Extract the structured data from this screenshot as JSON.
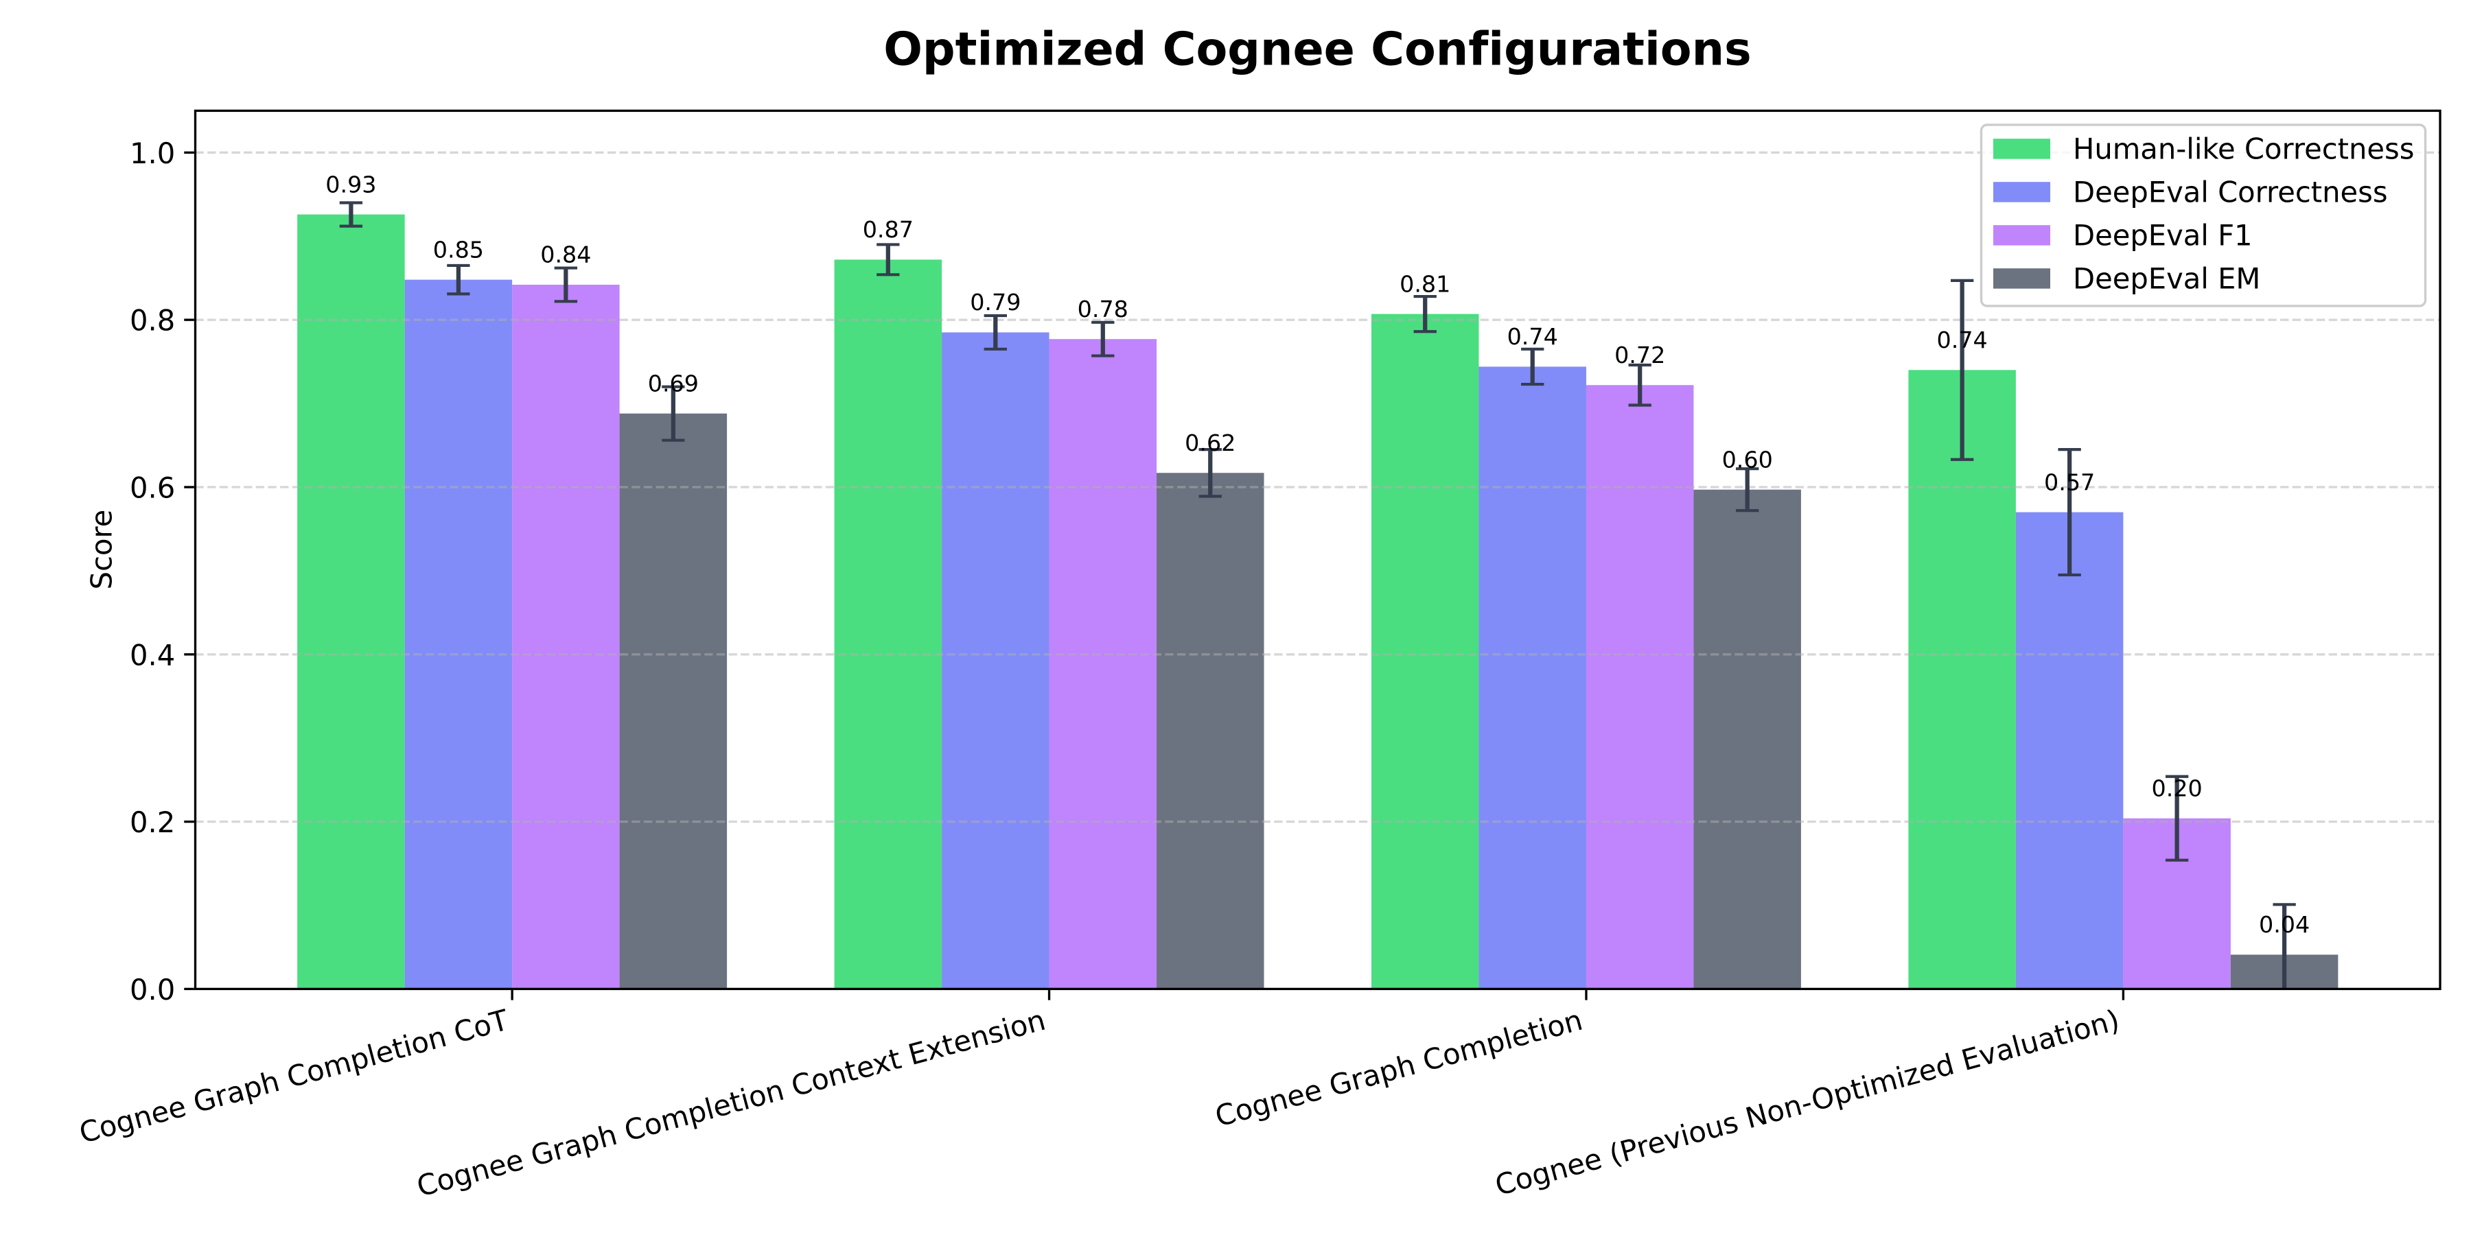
{
  "chart_data": {
    "type": "bar",
    "title": "Optimized Cognee Configurations",
    "xlabel": "",
    "ylabel": "Score",
    "ylim": [
      0,
      1.05
    ],
    "yticks": [
      "0.0",
      "0.2",
      "0.4",
      "0.6",
      "0.8",
      "1.0"
    ],
    "ytick_values": [
      0.0,
      0.2,
      0.4,
      0.6,
      0.8,
      1.0
    ],
    "grid": true,
    "grid_style": "dashed",
    "legend_position": "upper right",
    "background_color": "#ffffff",
    "error_bar_color": "#353d4e",
    "categories": [
      "Cognee Graph Completion CoT",
      "Cognee Graph Completion Context Extension",
      "Cognee Graph Completion",
      "Cognee (Previous Non-Optimized Evaluation)"
    ],
    "series": [
      {
        "name": "Human-like Correctness",
        "color": "#4ade80",
        "values": [
          0.926,
          0.872,
          0.807,
          0.74
        ],
        "errors": [
          0.014,
          0.018,
          0.021,
          0.107
        ],
        "labels": [
          "0.93",
          "0.87",
          "0.81",
          "0.74"
        ]
      },
      {
        "name": "DeepEval Correctness",
        "color": "#818cf8",
        "values": [
          0.848,
          0.785,
          0.744,
          0.57
        ],
        "errors": [
          0.017,
          0.02,
          0.021,
          0.075
        ],
        "labels": [
          "0.85",
          "0.79",
          "0.74",
          "0.57"
        ]
      },
      {
        "name": "DeepEval F1",
        "color": "#c084fc",
        "values": [
          0.842,
          0.777,
          0.722,
          0.204
        ],
        "errors": [
          0.02,
          0.02,
          0.024,
          0.05
        ],
        "labels": [
          "0.84",
          "0.78",
          "0.72",
          "0.20"
        ]
      },
      {
        "name": "DeepEval EM",
        "color": "#6b7280",
        "values": [
          0.688,
          0.617,
          0.597,
          0.041
        ],
        "errors": [
          0.032,
          0.028,
          0.025,
          0.06
        ],
        "labels": [
          "0.69",
          "0.62",
          "0.60",
          "0.04"
        ]
      }
    ]
  }
}
